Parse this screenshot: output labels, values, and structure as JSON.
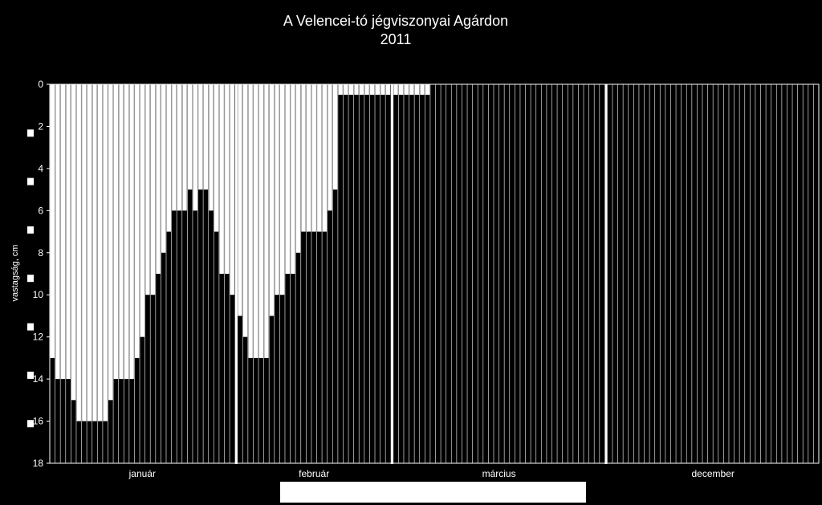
{
  "chart_data": {
    "type": "bar",
    "title": "A Velencei-tó jégviszonyai Agárdon",
    "subtitle": "2011",
    "ylabel": "vastagság, cm",
    "xlabel": "",
    "ylim": [
      0,
      18
    ],
    "y_inverted": true,
    "y_ticks": [
      "0",
      "2",
      "4",
      "6",
      "8",
      "10",
      "12",
      "14",
      "16",
      "18"
    ],
    "month_labels": [
      "január",
      "február",
      "március",
      "december"
    ],
    "grid": true,
    "legend": "bottom (blank)",
    "colors": {
      "background": "#000000",
      "bars": "#ffffff",
      "gridlines": "#ffffff"
    },
    "series": [
      {
        "month": "január",
        "values": [
          13,
          14,
          14,
          14,
          15,
          16,
          16,
          16,
          16,
          16,
          16,
          15,
          14,
          14,
          14,
          14,
          13,
          12,
          10,
          10,
          9,
          8,
          7,
          6,
          6,
          6,
          5,
          6,
          5,
          5,
          6,
          7,
          9,
          9,
          10
        ]
      },
      {
        "month": "február",
        "values": [
          11,
          12,
          13,
          13,
          13,
          13,
          11,
          10,
          10,
          9,
          9,
          8,
          7,
          7,
          7,
          7,
          7,
          6,
          5,
          0.5,
          0.5,
          0.5,
          0.5,
          0.5,
          0.5,
          0.5,
          0.5,
          0.5,
          0.5
        ]
      },
      {
        "month": "március",
        "values": [
          0.5,
          0.5,
          0.5,
          0.5,
          0.5,
          0.5,
          0.5,
          0,
          0,
          0,
          0,
          0,
          0,
          0,
          0,
          0,
          0,
          0,
          0,
          0,
          0,
          0,
          0,
          0,
          0,
          0,
          0,
          0,
          0,
          0,
          0,
          0,
          0,
          0,
          0,
          0,
          0,
          0,
          0,
          0
        ]
      },
      {
        "month": "december",
        "values": [
          0,
          0,
          0,
          0,
          0,
          0,
          0,
          0,
          0,
          0,
          0,
          0,
          0,
          0,
          0,
          0,
          0,
          0,
          0,
          0,
          0,
          0,
          0,
          0,
          0,
          0,
          0,
          0,
          0,
          0,
          0,
          0,
          0,
          0,
          0,
          0,
          0,
          0,
          0,
          0
        ]
      }
    ]
  }
}
